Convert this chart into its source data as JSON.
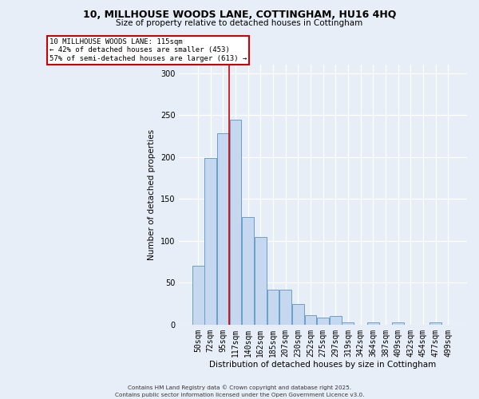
{
  "title_line1": "10, MILLHOUSE WOODS LANE, COTTINGHAM, HU16 4HQ",
  "title_line2": "Size of property relative to detached houses in Cottingham",
  "xlabel": "Distribution of detached houses by size in Cottingham",
  "ylabel": "Number of detached properties",
  "categories": [
    "50sqm",
    "72sqm",
    "95sqm",
    "117sqm",
    "140sqm",
    "162sqm",
    "185sqm",
    "207sqm",
    "230sqm",
    "252sqm",
    "275sqm",
    "297sqm",
    "319sqm",
    "342sqm",
    "364sqm",
    "387sqm",
    "409sqm",
    "432sqm",
    "454sqm",
    "477sqm",
    "499sqm"
  ],
  "values": [
    70,
    199,
    228,
    244,
    128,
    105,
    42,
    42,
    25,
    11,
    8,
    10,
    3,
    0,
    3,
    0,
    3,
    0,
    0,
    3,
    0
  ],
  "bar_color": "#c5d8ef",
  "bar_edge_color": "#6b9fc8",
  "vline_x": 2.5,
  "vline_color": "#cc0000",
  "annotation_text": "10 MILLHOUSE WOODS LANE: 115sqm\n← 42% of detached houses are smaller (453)\n57% of semi-detached houses are larger (613) →",
  "annotation_box_color": "#ffffff",
  "annotation_box_edge": "#cc0000",
  "footnote1": "Contains HM Land Registry data © Crown copyright and database right 2025.",
  "footnote2": "Contains public sector information licensed under the Open Government Licence v3.0.",
  "background_color": "#e8eef8",
  "ylim": [
    0,
    310
  ],
  "yticks": [
    0,
    50,
    100,
    150,
    200,
    250,
    300
  ],
  "figsize": [
    6.0,
    5.0
  ],
  "dpi": 100
}
